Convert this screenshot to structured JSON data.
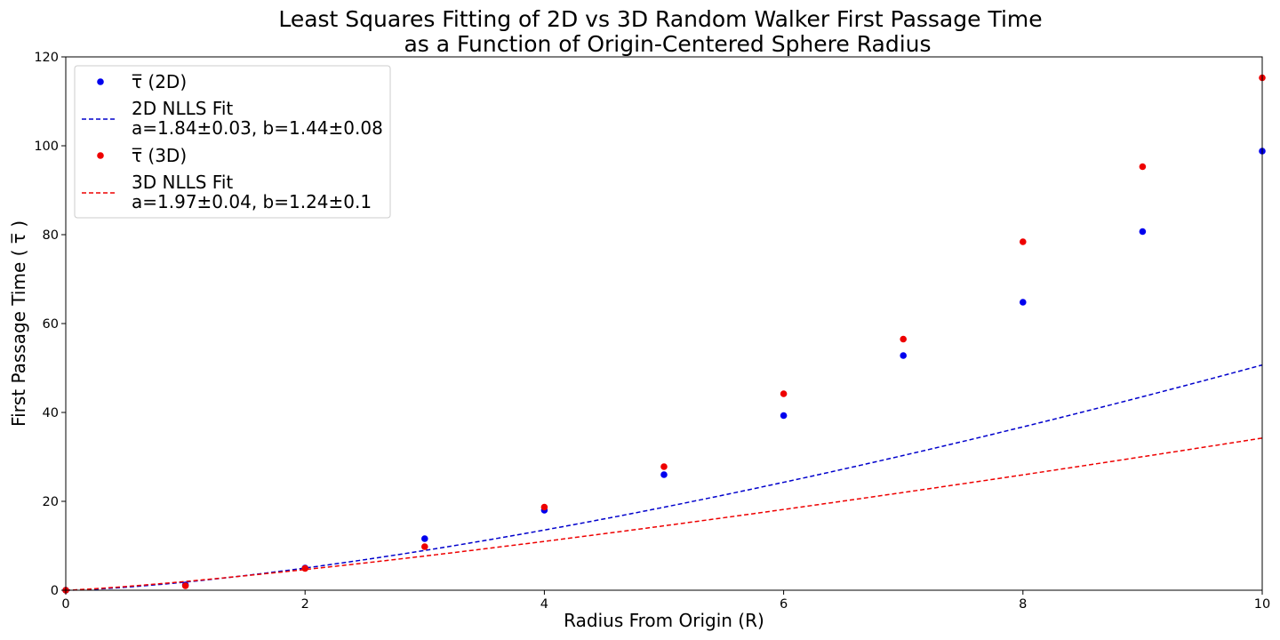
{
  "chart_data": {
    "type": "scatter",
    "title": [
      "Least Squares Fitting of 2D vs 3D Random Walker First Passage Time",
      "as a Function of Origin-Centered Sphere Radius"
    ],
    "xlabel": "Radius From Origin (R)",
    "ylabel": "First Passage Time ( τ̅ )",
    "xlim": [
      0,
      10
    ],
    "ylim": [
      0,
      120
    ],
    "xticks": [
      0,
      2,
      4,
      6,
      8,
      10
    ],
    "yticks": [
      0,
      20,
      40,
      60,
      80,
      100,
      120
    ],
    "grid": false,
    "legend_position": "top-left",
    "series": [
      {
        "name": "τ̅ (2D)",
        "kind": "points",
        "color": "#0000ee",
        "x": [
          0,
          1,
          2,
          3,
          4,
          5,
          6,
          7,
          8,
          9,
          10
        ],
        "y": [
          0,
          1.2,
          5.0,
          11.6,
          18.0,
          26.0,
          39.3,
          52.8,
          64.8,
          80.7,
          98.8
        ]
      },
      {
        "name": "2D NLLS Fit",
        "label_lines": [
          "2D NLLS Fit",
          "a=1.84±0.03, b=1.44±0.08"
        ],
        "kind": "fit",
        "color": "#0000cc",
        "a": 1.84,
        "b": 1.44
      },
      {
        "name": "τ̅ (3D)",
        "kind": "points",
        "color": "#ee0000",
        "x": [
          0,
          1,
          2,
          3,
          4,
          5,
          6,
          7,
          8,
          9,
          10
        ],
        "y": [
          0,
          1.0,
          4.9,
          9.8,
          18.7,
          27.8,
          44.2,
          56.5,
          78.4,
          95.3,
          115.3
        ]
      },
      {
        "name": "3D NLLS Fit",
        "label_lines": [
          "3D NLLS Fit",
          "a=1.97±0.04, b=1.24±0.1"
        ],
        "kind": "fit",
        "color": "#ee0000",
        "a": 1.97,
        "b": 1.24
      }
    ]
  }
}
